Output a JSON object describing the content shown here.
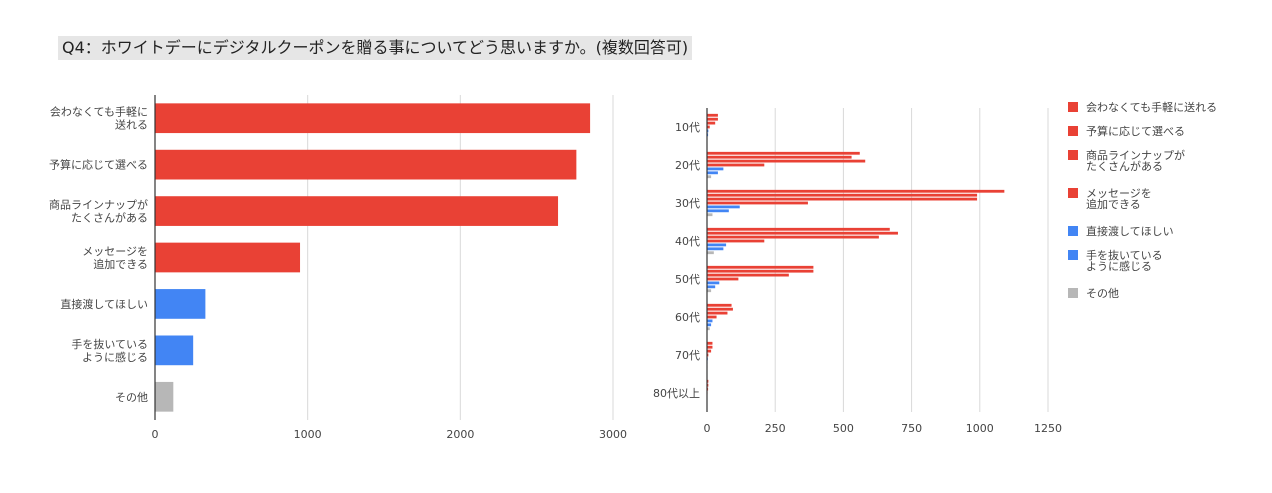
{
  "title": "Q4：ホワイトデーにデジタルクーポンを贈る事についてどう思いますか。(複数回答可)",
  "colors": {
    "red": "#e94135",
    "blue": "#4285f4",
    "gray": "#b7b7b7",
    "grid": "#d9d9d9",
    "axis": "#333333"
  },
  "chart_data": [
    {
      "type": "bar",
      "orientation": "horizontal",
      "title": "",
      "categories": [
        [
          "会わなくても手軽に",
          "送れる"
        ],
        [
          "予算に応じて選べる"
        ],
        [
          "商品ラインナップが",
          "たくさんがある"
        ],
        [
          "メッセージを",
          "追加できる"
        ],
        [
          "直接渡してほしい"
        ],
        [
          "手を抜いている",
          "ように感じる"
        ],
        [
          "その他"
        ]
      ],
      "values": [
        2850,
        2760,
        2640,
        950,
        330,
        250,
        120
      ],
      "bar_colors": [
        "red",
        "red",
        "red",
        "red",
        "blue",
        "blue",
        "gray"
      ],
      "xlim": [
        0,
        3000
      ],
      "xticks": [
        0,
        1000,
        2000,
        3000
      ],
      "grid": true
    },
    {
      "type": "bar",
      "orientation": "horizontal",
      "grouped": true,
      "title": "",
      "categories": [
        "10代",
        "20代",
        "30代",
        "40代",
        "50代",
        "60代",
        "70代",
        "80代以上"
      ],
      "series": [
        {
          "name": "会わなくても手軽に送れる",
          "legend": [
            "会わなくても手軽に送れる"
          ],
          "color": "red",
          "values": [
            40,
            560,
            1090,
            670,
            390,
            90,
            20,
            5
          ]
        },
        {
          "name": "予算に応じて選べる",
          "legend": [
            "予算に応じて選べる"
          ],
          "color": "red",
          "values": [
            40,
            530,
            990,
            700,
            390,
            95,
            20,
            5
          ]
        },
        {
          "name": "商品ラインナップがたくさんがある",
          "legend": [
            "商品ラインナップが",
            "たくさんがある"
          ],
          "color": "red",
          "values": [
            30,
            580,
            990,
            630,
            300,
            75,
            15,
            4
          ]
        },
        {
          "name": "メッセージを追加できる",
          "legend": [
            "メッセージを",
            "追加できる"
          ],
          "color": "red",
          "values": [
            10,
            210,
            370,
            210,
            115,
            35,
            5,
            2
          ]
        },
        {
          "name": "直接渡してほしい",
          "legend": [
            "直接渡してほしい"
          ],
          "color": "blue",
          "values": [
            5,
            60,
            120,
            70,
            45,
            20,
            3,
            1
          ]
        },
        {
          "name": "手を抜いているように感じる",
          "legend": [
            "手を抜いている",
            "ように感じる"
          ],
          "color": "blue",
          "values": [
            4,
            40,
            80,
            60,
            30,
            15,
            2,
            1
          ]
        },
        {
          "name": "その他",
          "legend": [
            "その他"
          ],
          "color": "gray",
          "values": [
            2,
            15,
            20,
            25,
            15,
            10,
            2,
            1
          ]
        }
      ],
      "xlim": [
        0,
        1250
      ],
      "xticks": [
        0,
        250,
        500,
        750,
        1000,
        1250
      ],
      "grid": true,
      "legend_position": "right"
    }
  ]
}
